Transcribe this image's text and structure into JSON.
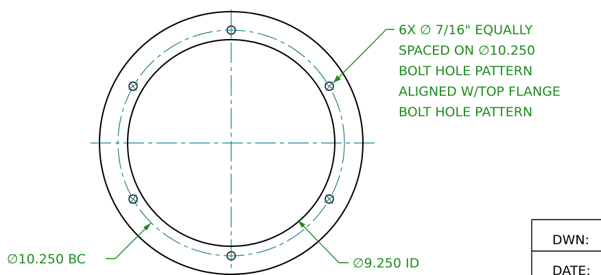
{
  "callouts": {
    "hole_note": {
      "line1": "6X ∅ 7/16\"  EQUALLY",
      "line2": "SPACED ON ∅10.250",
      "line3": "BOLT HOLE PATTERN",
      "line4": "ALIGNED W/TOP FLANGE",
      "line5": "BOLT HOLE PATTERN"
    },
    "bolt_circle": "∅10.250 BC",
    "inner_diameter": "∅9.250 ID"
  },
  "title_block": {
    "drawn_label": "DWN:",
    "date_label": "DATE:"
  },
  "colors": {
    "annotation": "#1e8c1e",
    "centerline": "#1c7f8a",
    "geometry": "#000000"
  }
}
